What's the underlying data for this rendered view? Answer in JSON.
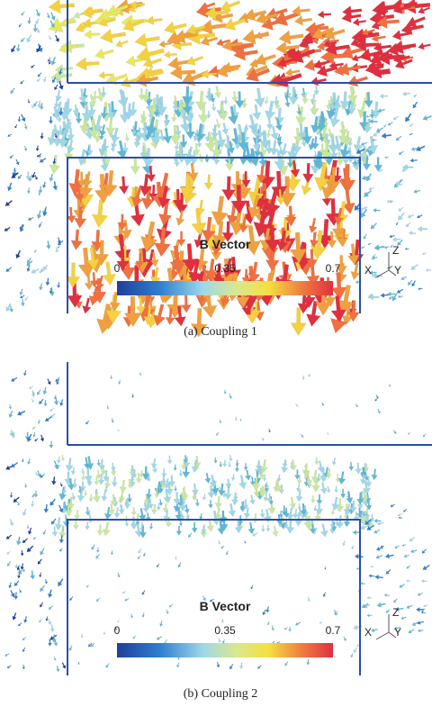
{
  "figures": [
    {
      "caption": "(a) Coupling 1",
      "legend": {
        "title": "B Vector",
        "ticks": [
          0,
          0.35,
          0.7
        ]
      },
      "axes": {
        "z": "Z",
        "x": "X",
        "y": "Y"
      }
    },
    {
      "caption": "(b) Coupling 2",
      "legend": {
        "title": "B Vector",
        "ticks": [
          0,
          0.35,
          0.7
        ]
      },
      "axes": {
        "z": "Z",
        "x": "X",
        "y": "Y"
      }
    }
  ]
}
